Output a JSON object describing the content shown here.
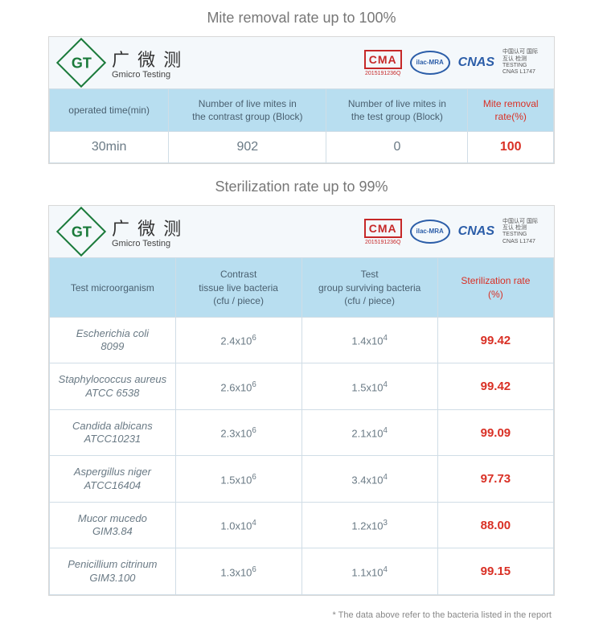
{
  "colors": {
    "page_bg": "#ffffff",
    "card_border": "#d8d8d8",
    "card_bg": "#f9fbfc",
    "header_row_bg": "#f4f8fb",
    "th_bg": "#b8def0",
    "th_text": "#4a6070",
    "cell_border": "#d0dde6",
    "td_text": "#6a7a85",
    "accent_red": "#d93025",
    "logo_green": "#1a7a3a",
    "cma_red": "#c62828",
    "cnas_blue": "#2b5da8",
    "title_text": "#777"
  },
  "typography": {
    "title_fontsize": 18,
    "th_fontsize": 12,
    "td_fontsize": 13,
    "red_td_fontsize": 15,
    "mite_td_fontsize": 16,
    "footnote_fontsize": 11
  },
  "logo": {
    "badge_text": "GT",
    "cn": "广 微 测",
    "en": "Gmicro Testing"
  },
  "certs": {
    "cma_text": "CMA",
    "cma_sub": "2015191236Q",
    "ilac_text": "ilac-MRA",
    "cnas_text": "CNAS",
    "cnas_small": "中国认可 国际互认 检测 TESTING CNAS L1747"
  },
  "mite": {
    "title": "Mite removal rate up to 100%",
    "columns": [
      "operated time(min)",
      "Number of live mites in\nthe contrast group (Block)",
      "Number of live mites in\nthe test group (Block)",
      "Mite removal\nrate(%)"
    ],
    "row": {
      "time": "30min",
      "contrast": "902",
      "test": "0",
      "rate": "100"
    }
  },
  "steril": {
    "title": "Sterilization rate up to 99%",
    "columns": [
      "Test microorganism",
      "Contrast\ntissue live bacteria\n(cfu / piece)",
      "Test\ngroup surviving bacteria\n(cfu / piece)",
      "Sterilization rate\n(%)"
    ],
    "rows": [
      {
        "name1": "Escherichia coli",
        "name2": "8099",
        "contrast": "2.4x10",
        "contrast_exp": "6",
        "test": "1.4x10",
        "test_exp": "4",
        "rate": "99.42"
      },
      {
        "name1": "Staphylococcus aureus",
        "name2": "ATCC 6538",
        "contrast": "2.6x10",
        "contrast_exp": "6",
        "test": "1.5x10",
        "test_exp": "4",
        "rate": "99.42"
      },
      {
        "name1": "Candida albicans",
        "name2": "ATCC10231",
        "contrast": "2.3x10",
        "contrast_exp": "6",
        "test": "2.1x10",
        "test_exp": "4",
        "rate": "99.09"
      },
      {
        "name1": "Aspergillus niger",
        "name2": "ATCC16404",
        "contrast": "1.5x10",
        "contrast_exp": "6",
        "test": "3.4x10",
        "test_exp": "4",
        "rate": "97.73"
      },
      {
        "name1": "Mucor mucedo",
        "name2": "GIM3.84",
        "contrast": "1.0x10",
        "contrast_exp": "4",
        "test": "1.2x10",
        "test_exp": "3",
        "rate": "88.00"
      },
      {
        "name1": "Penicillium citrinum",
        "name2": "GIM3.100",
        "contrast": "1.3x10",
        "contrast_exp": "6",
        "test": "1.1x10",
        "test_exp": "4",
        "rate": "99.15"
      }
    ],
    "footnote": "* The data above refer to the bacteria listed in the report"
  }
}
